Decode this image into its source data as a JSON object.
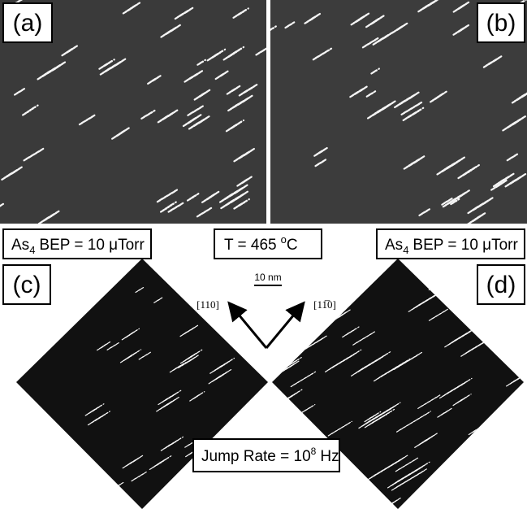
{
  "panels": [
    {
      "label": "(a)"
    },
    {
      "label": "(b)"
    },
    {
      "label": "(c)"
    },
    {
      "label": "(d)"
    }
  ],
  "annotations": {
    "bep_left": {
      "species": "As",
      "subscript": "4",
      "text": "BEP = 10 μTorr"
    },
    "temperature": {
      "text": "T = 465",
      "superscript": "o",
      "unit": "C"
    },
    "bep_right": {
      "species": "As",
      "subscript": "4",
      "text": "BEP = 10 μTorr"
    },
    "scale_bar": "10 nm",
    "direction_left": "[110]",
    "direction_right": "[11̅0]",
    "jump_rate": {
      "text": "Jump Rate = 10",
      "superscript": "8",
      "unit": "Hz"
    }
  }
}
